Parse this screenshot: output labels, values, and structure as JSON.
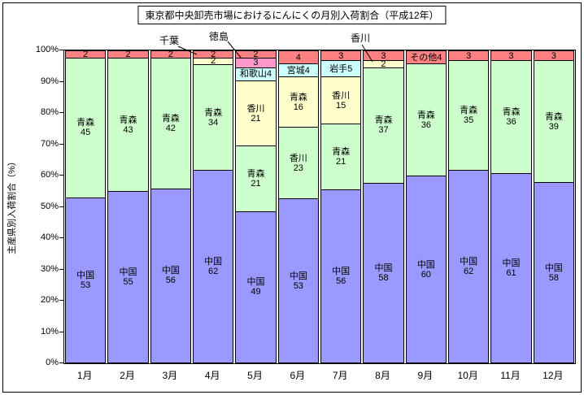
{
  "title": "東京都中央卸売市場におけるにんにくの月別入荷割合（平成12年）",
  "y_axis": {
    "title": "主産県別入荷割合（%）",
    "ticks": [
      "100%",
      "90%",
      "80%",
      "70%",
      "60%",
      "50%",
      "40%",
      "30%",
      "20%",
      "10%",
      "0%"
    ]
  },
  "x_axis": {
    "labels": [
      "1月",
      "2月",
      "3月",
      "4月",
      "5月",
      "6月",
      "7月",
      "8月",
      "9月",
      "10月",
      "11月",
      "12月"
    ]
  },
  "palette": {
    "purple": "#9999FF",
    "green": "#CCFFCC",
    "yellow": "#FFFFCC",
    "blue": "#CCFFFF",
    "pink": "#FF99CC",
    "red": "#FF8080"
  },
  "annotations": [
    {
      "label": "千葉",
      "points_to": "4月の黄色セグメント 2"
    },
    {
      "label": "徳島",
      "points_to": "5月のピンクセグメント 3"
    },
    {
      "label": "香川",
      "points_to": "8月の黄色セグメント 2"
    }
  ],
  "chart_data": {
    "type": "bar",
    "variant": "100%-stacked-column",
    "title": "東京都中央卸売市場におけるにんにくの月別入荷割合（平成12年）",
    "xlabel": "",
    "ylabel": "主産県別入荷割合（%）",
    "ylim": [
      0,
      100
    ],
    "grid": false,
    "legend": "none (labels inside segments and callouts)",
    "segment_order": "top-to-bottom",
    "categories": [
      "1月",
      "2月",
      "3月",
      "4月",
      "5月",
      "6月",
      "7月",
      "8月",
      "9月",
      "10月",
      "11月",
      "12月"
    ],
    "bars": [
      {
        "month": "1月",
        "segments": [
          {
            "series": "その他",
            "value": 2,
            "color": "red",
            "show": "2"
          },
          {
            "series": "青森",
            "value": 45,
            "color": "green",
            "show": "青森\n45"
          },
          {
            "series": "中国",
            "value": 53,
            "color": "purple",
            "show": "中国\n53"
          }
        ]
      },
      {
        "month": "2月",
        "segments": [
          {
            "series": "その他",
            "value": 2,
            "color": "red",
            "show": "2"
          },
          {
            "series": "青森",
            "value": 43,
            "color": "green",
            "show": "青森\n43"
          },
          {
            "series": "中国",
            "value": 55,
            "color": "purple",
            "show": "中国\n55"
          }
        ]
      },
      {
        "month": "3月",
        "segments": [
          {
            "series": "その他",
            "value": 2,
            "color": "red",
            "show": "2"
          },
          {
            "series": "青森",
            "value": 42,
            "color": "green",
            "show": "青森\n42"
          },
          {
            "series": "中国",
            "value": 56,
            "color": "purple",
            "show": "中国\n56"
          }
        ]
      },
      {
        "month": "4月",
        "segments": [
          {
            "series": "その他",
            "value": 2,
            "color": "red",
            "show": "2"
          },
          {
            "series": "千葉",
            "value": 2,
            "color": "yellow",
            "show": "2"
          },
          {
            "series": "青森",
            "value": 34,
            "color": "green",
            "show": "青森\n34"
          },
          {
            "series": "中国",
            "value": 62,
            "color": "purple",
            "show": "中国\n62"
          }
        ]
      },
      {
        "month": "5月",
        "segments": [
          {
            "series": "その他",
            "value": 2,
            "color": "red",
            "show": "2"
          },
          {
            "series": "徳島",
            "value": 3,
            "color": "pink",
            "show": "3"
          },
          {
            "series": "和歌山",
            "value": 4,
            "color": "blue",
            "show": "和歌山4"
          },
          {
            "series": "香川",
            "value": 21,
            "color": "yellow",
            "show": "香川\n21"
          },
          {
            "series": "青森",
            "value": 21,
            "color": "green",
            "show": "青森\n21"
          },
          {
            "series": "中国",
            "value": 49,
            "color": "purple",
            "show": "中国\n49"
          }
        ]
      },
      {
        "month": "6月",
        "segments": [
          {
            "series": "その他",
            "value": 4,
            "color": "red",
            "show": "4"
          },
          {
            "series": "宮城",
            "value": 4,
            "color": "blue",
            "show": "宮城4"
          },
          {
            "series": "青森",
            "value": 16,
            "color": "yellow",
            "show": "青森\n16"
          },
          {
            "series": "香川",
            "value": 23,
            "color": "green",
            "show": "香川\n23"
          },
          {
            "series": "中国",
            "value": 53,
            "color": "purple",
            "show": "中国\n53"
          }
        ]
      },
      {
        "month": "7月",
        "segments": [
          {
            "series": "その他",
            "value": 3,
            "color": "red",
            "show": "3"
          },
          {
            "series": "岩手",
            "value": 5,
            "color": "blue",
            "show": "岩手5"
          },
          {
            "series": "香川",
            "value": 15,
            "color": "yellow",
            "show": "香川\n15"
          },
          {
            "series": "青森",
            "value": 21,
            "color": "green",
            "show": "青森\n21"
          },
          {
            "series": "中国",
            "value": 56,
            "color": "purple",
            "show": "中国\n56"
          }
        ]
      },
      {
        "month": "8月",
        "segments": [
          {
            "series": "その他",
            "value": 3,
            "color": "red",
            "show": "3"
          },
          {
            "series": "香川",
            "value": 2,
            "color": "yellow",
            "show": "2"
          },
          {
            "series": "青森",
            "value": 37,
            "color": "green",
            "show": "青森\n37"
          },
          {
            "series": "中国",
            "value": 58,
            "color": "purple",
            "show": "中国\n58"
          }
        ]
      },
      {
        "month": "9月",
        "segments": [
          {
            "series": "その他",
            "value": 4,
            "color": "red",
            "show": "その他4"
          },
          {
            "series": "青森",
            "value": 36,
            "color": "green",
            "show": "青森\n36"
          },
          {
            "series": "中国",
            "value": 60,
            "color": "purple",
            "show": "中国\n60"
          }
        ]
      },
      {
        "month": "10月",
        "segments": [
          {
            "series": "その他",
            "value": 3,
            "color": "red",
            "show": "3"
          },
          {
            "series": "青森",
            "value": 35,
            "color": "green",
            "show": "青森\n35"
          },
          {
            "series": "中国",
            "value": 62,
            "color": "purple",
            "show": "中国\n62"
          }
        ]
      },
      {
        "month": "11月",
        "segments": [
          {
            "series": "その他",
            "value": 3,
            "color": "red",
            "show": "3"
          },
          {
            "series": "青森",
            "value": 36,
            "color": "green",
            "show": "青森\n36"
          },
          {
            "series": "中国",
            "value": 61,
            "color": "purple",
            "show": "中国\n61"
          }
        ]
      },
      {
        "month": "12月",
        "segments": [
          {
            "series": "その他",
            "value": 3,
            "color": "red",
            "show": "3"
          },
          {
            "series": "青森",
            "value": 39,
            "color": "green",
            "show": "青森\n39"
          },
          {
            "series": "中国",
            "value": 58,
            "color": "purple",
            "show": "中国\n58"
          }
        ]
      }
    ]
  }
}
